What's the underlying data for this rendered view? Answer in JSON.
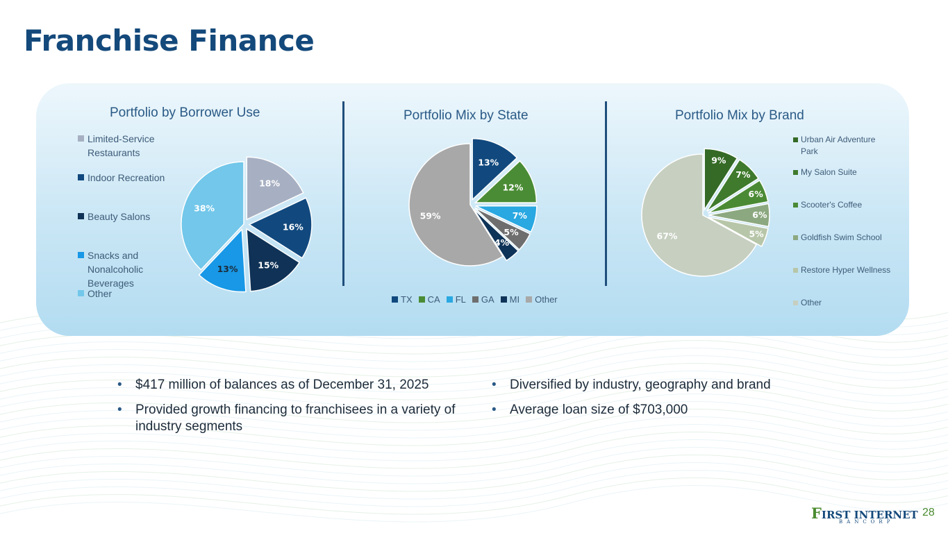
{
  "title": "Franchise Finance",
  "colors": {
    "title": "#14497b",
    "panel_top": "#edf7fc",
    "panel_bottom": "#b3dcf1",
    "divider": "#1f4e7c",
    "page_number": "#4a8b2f"
  },
  "chart_data": [
    {
      "type": "pie",
      "title": "Portfolio by Borrower Use",
      "legend_position": "left",
      "categories": [
        "Limited-Service Restaurants",
        "Indoor Recreation",
        "Beauty Salons",
        "Snacks and Nonalcoholic Beverages",
        "Other"
      ],
      "values": [
        18,
        16,
        15,
        13,
        38
      ],
      "labels": [
        "18%",
        "16%",
        "15%",
        "13%",
        "38%"
      ],
      "colors": [
        "#a7b0c2",
        "#11497e",
        "#0f3256",
        "#1898e6",
        "#72c7ea"
      ],
      "label_colors": [
        "#ffffff",
        "#ffffff",
        "#ffffff",
        "#1c2b3a",
        "#ffffff"
      ]
    },
    {
      "type": "pie",
      "title": "Portfolio Mix by State",
      "legend_position": "bottom",
      "categories": [
        "TX",
        "CA",
        "FL",
        "GA",
        "MI",
        "Other"
      ],
      "values": [
        13,
        12,
        7,
        5,
        4,
        59
      ],
      "labels": [
        "13%",
        "12%",
        "7%",
        "5%",
        "4%",
        "59%"
      ],
      "colors": [
        "#11497e",
        "#4a8c35",
        "#29a8e1",
        "#6e6e6e",
        "#0e3358",
        "#a8a8a8"
      ],
      "label_colors": [
        "#ffffff",
        "#ffffff",
        "#ffffff",
        "#ffffff",
        "#ffffff",
        "#ffffff"
      ]
    },
    {
      "type": "pie",
      "title": "Portfolio Mix by Brand",
      "legend_position": "right",
      "categories": [
        "Urban Air Adventure Park",
        "My Salon Suite",
        "Scooter's Coffee",
        "Goldfish Swim School",
        "Restore Hyper Wellness",
        "Other"
      ],
      "values": [
        9,
        7,
        6,
        6,
        5,
        67
      ],
      "labels": [
        "9%",
        "7%",
        "6%",
        "6%",
        "5%",
        "67%"
      ],
      "colors": [
        "#346a26",
        "#3f7a2d",
        "#4b8a35",
        "#8ca880",
        "#b7c6a8",
        "#c6cfc0"
      ],
      "label_colors": [
        "#ffffff",
        "#ffffff",
        "#ffffff",
        "#ffffff",
        "#ffffff",
        "#ffffff"
      ]
    }
  ],
  "bullets_left": [
    "$417 million of balances as of December 31, 2025",
    "Provided growth financing to franchisees in a variety of industry segments"
  ],
  "bullets_right": [
    "Diversified by industry, geography and brand",
    "Average loan size of $703,000"
  ],
  "bullet_glyph": "•",
  "logo": {
    "main": "IRST INTERNET",
    "initial": "F",
    "sub": "BANCORP"
  },
  "page_number": "28"
}
